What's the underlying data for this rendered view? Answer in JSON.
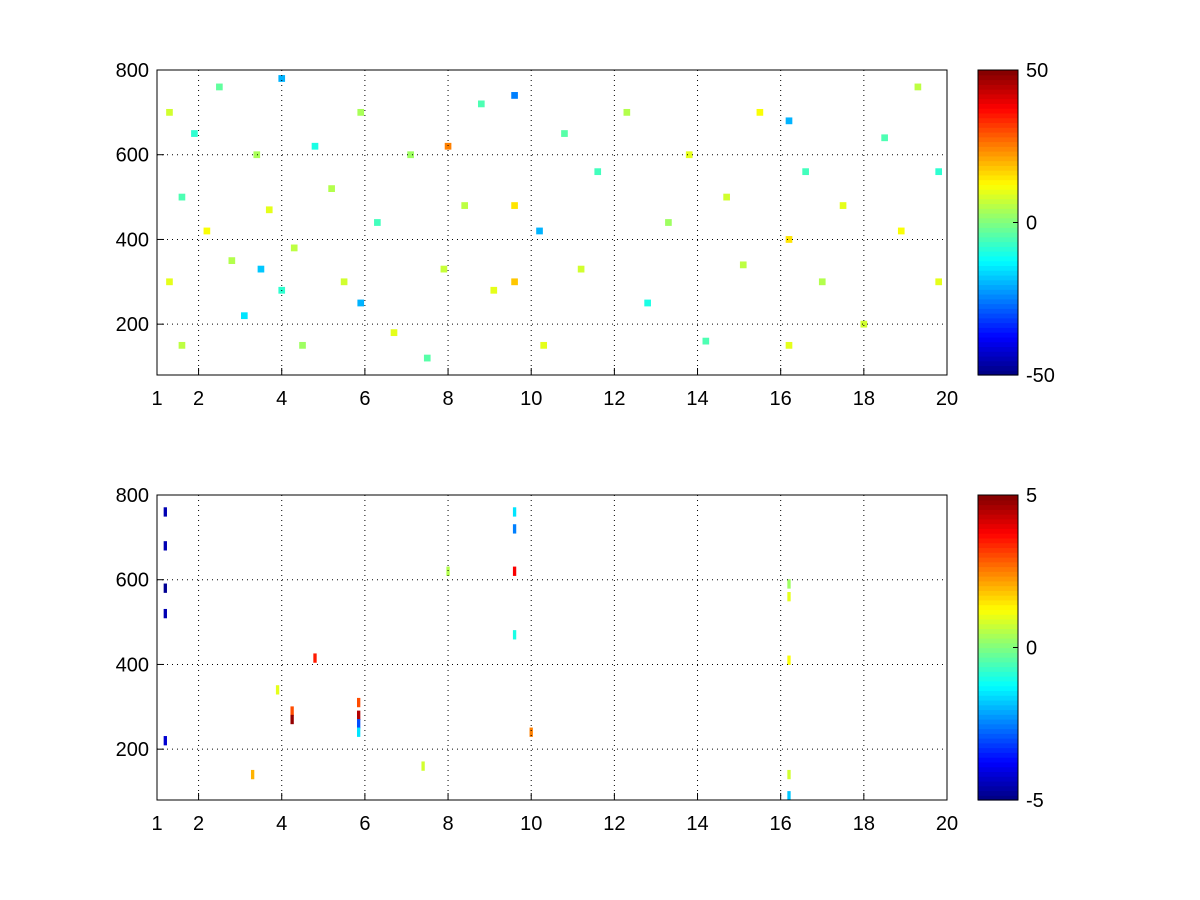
{
  "chart_data": [
    {
      "type": "heatmap",
      "colormap": "jet",
      "grid": true,
      "xlim": [
        1,
        20
      ],
      "xticks": [
        1,
        2,
        4,
        6,
        8,
        10,
        12,
        14,
        16,
        18,
        20
      ],
      "ylim": [
        80,
        800
      ],
      "yticks": [
        200,
        400,
        600,
        800
      ],
      "clim": [
        -50,
        50
      ],
      "cticks": [
        -50,
        0,
        50
      ],
      "x": [
        1.3,
        1.3,
        1.6,
        1.6,
        1.9,
        2.2,
        2.5,
        2.8,
        3.1,
        3.4,
        3.5,
        3.7,
        4.0,
        4.0,
        4.3,
        4.5,
        4.8,
        5.2,
        5.5,
        5.9,
        5.9,
        6.3,
        6.7,
        7.1,
        7.5,
        7.9,
        8.0,
        8.4,
        8.8,
        9.1,
        9.6,
        9.6,
        9.6,
        10.2,
        10.3,
        10.8,
        11.2,
        11.6,
        12.3,
        12.8,
        13.3,
        13.8,
        14.2,
        14.7,
        15.1,
        15.5,
        16.2,
        16.2,
        16.2,
        16.6,
        17.0,
        17.5,
        18.0,
        18.5,
        18.9,
        19.3,
        19.8,
        19.8
      ],
      "y": [
        700,
        300,
        500,
        150,
        650,
        420,
        760,
        350,
        220,
        600,
        330,
        470,
        780,
        280,
        380,
        150,
        620,
        520,
        300,
        250,
        700,
        440,
        180,
        600,
        120,
        330,
        620,
        480,
        720,
        280,
        740,
        480,
        300,
        420,
        150,
        650,
        330,
        560,
        700,
        250,
        440,
        600,
        160,
        500,
        340,
        700,
        680,
        400,
        150,
        560,
        300,
        480,
        200,
        640,
        420,
        760,
        300,
        560
      ],
      "values": [
        8,
        10,
        -5,
        6,
        -8,
        12,
        -3,
        5,
        -15,
        4,
        -18,
        10,
        -20,
        -8,
        6,
        3,
        -10,
        5,
        8,
        -20,
        4,
        -6,
        10,
        3,
        -4,
        7,
        25,
        6,
        -5,
        10,
        -25,
        15,
        18,
        -20,
        10,
        -4,
        8,
        -6,
        5,
        -10,
        3,
        10,
        -5,
        8,
        6,
        12,
        -20,
        15,
        10,
        -6,
        5,
        10,
        8,
        -5,
        12,
        6,
        10,
        -8
      ]
    },
    {
      "type": "heatmap",
      "colormap": "jet",
      "grid": true,
      "xlim": [
        1,
        20
      ],
      "xticks": [
        1,
        2,
        4,
        6,
        8,
        10,
        12,
        14,
        16,
        18,
        20
      ],
      "ylim": [
        80,
        800
      ],
      "yticks": [
        200,
        400,
        600,
        800
      ],
      "clim": [
        -5,
        5
      ],
      "cticks": [
        -5,
        0,
        5
      ],
      "x": [
        1.2,
        1.2,
        1.2,
        1.2,
        1.2,
        9.6,
        9.6,
        9.6,
        9.6,
        5.85,
        5.85,
        5.85,
        5.85,
        4.25,
        4.25,
        16.2,
        16.2,
        16.2,
        16.2,
        16.2,
        8.0,
        7.4,
        4.8,
        3.3,
        10.0,
        3.9
      ],
      "y": [
        760,
        680,
        580,
        520,
        220,
        760,
        720,
        620,
        470,
        310,
        280,
        260,
        240,
        290,
        270,
        590,
        560,
        410,
        140,
        90,
        620,
        160,
        415,
        140,
        240,
        340
      ],
      "values": [
        -4.5,
        -4.5,
        -4.8,
        -4.5,
        -4.2,
        -1.5,
        -2.5,
        3.8,
        -1,
        3,
        4.5,
        -3,
        -1.5,
        3,
        4.8,
        0.3,
        1,
        1.2,
        0.8,
        -1.8,
        0.5,
        0.8,
        3.5,
        2,
        2.5,
        1
      ]
    }
  ]
}
